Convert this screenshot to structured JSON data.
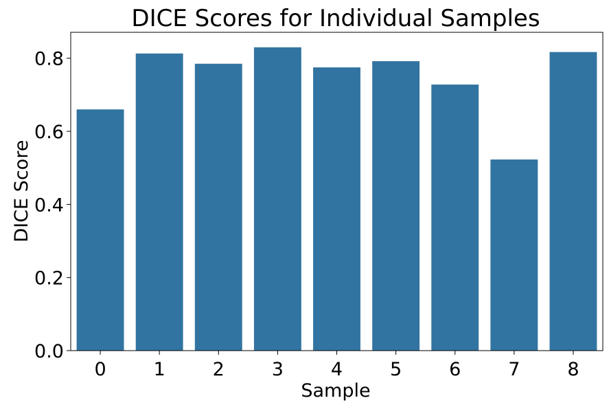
{
  "chart_data": {
    "type": "bar",
    "title": "DICE Scores for Individual Samples",
    "xlabel": "Sample",
    "ylabel": "DICE Score",
    "categories": [
      "0",
      "1",
      "2",
      "3",
      "4",
      "5",
      "6",
      "7",
      "8"
    ],
    "values": [
      0.66,
      0.813,
      0.785,
      0.83,
      0.775,
      0.792,
      0.728,
      0.523,
      0.817
    ],
    "yticks": [
      "0.0",
      "0.2",
      "0.4",
      "0.6",
      "0.8"
    ],
    "ylim": [
      0,
      0.871
    ],
    "grid": false,
    "legend": "none",
    "bar_color": "#3274a1"
  }
}
